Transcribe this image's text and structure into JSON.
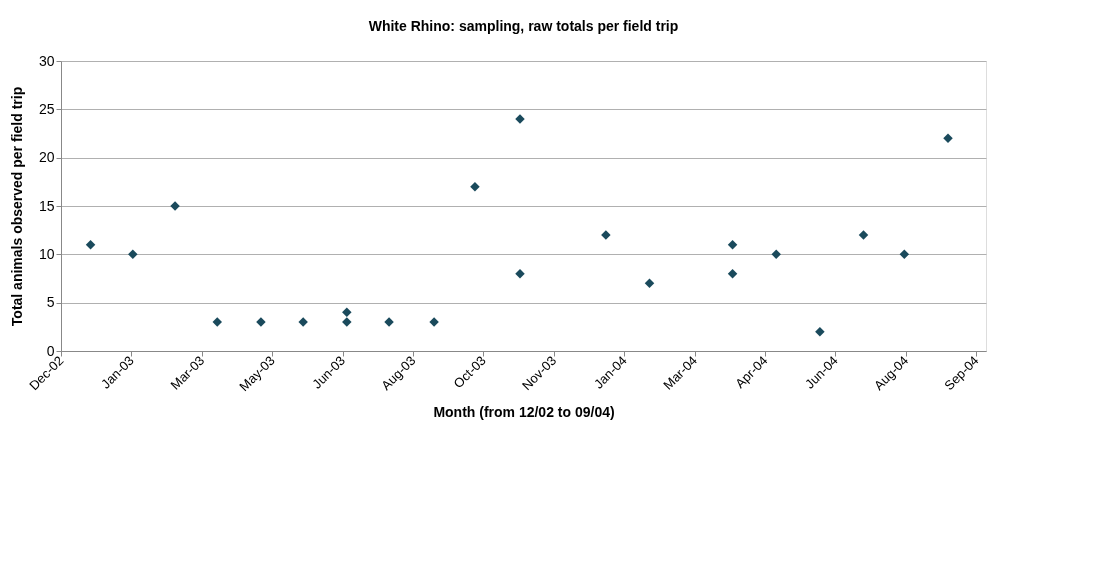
{
  "chart_data": {
    "type": "scatter",
    "title": "White Rhino: sampling, raw totals per field trip",
    "xlabel": "Month (from 12/02 to 09/04)",
    "ylabel": "Total animals observed per field trip",
    "x": [
      "2003-01-01",
      "2003-01-31",
      "2003-03-02",
      "2003-04-01",
      "2003-05-02",
      "2003-06-01",
      "2003-07-02",
      "2003-07-02",
      "2003-08-01",
      "2003-09-02",
      "2003-10-01",
      "2003-11-02",
      "2003-11-02",
      "2004-01-02",
      "2004-02-02",
      "2004-04-01",
      "2004-04-01",
      "2004-05-02",
      "2004-06-02",
      "2004-07-03",
      "2004-08-01",
      "2004-09-01"
    ],
    "series": [
      {
        "color": "#1a4a5c",
        "values": [
          11,
          10,
          15,
          3,
          3,
          3,
          4,
          3,
          3,
          3,
          17,
          24,
          8,
          12,
          7,
          11,
          8,
          10,
          2,
          12,
          10,
          22
        ]
      }
    ],
    "xlim": [
      "2002-12-11",
      "2004-09-28"
    ],
    "xticks": [
      {
        "value": "2002-12-11",
        "label": "Dec-02"
      },
      {
        "value": "2003-01-30",
        "label": "Jan-03"
      },
      {
        "value": "2003-03-21",
        "label": "Mar-03"
      },
      {
        "value": "2003-05-10",
        "label": "May-03"
      },
      {
        "value": "2003-06-29",
        "label": "Jun-03"
      },
      {
        "value": "2003-08-18",
        "label": "Aug-03"
      },
      {
        "value": "2003-10-07",
        "label": "Oct-03"
      },
      {
        "value": "2003-11-26",
        "label": "Nov-03"
      },
      {
        "value": "2004-01-15",
        "label": "Jan-04"
      },
      {
        "value": "2004-03-05",
        "label": "Mar-04"
      },
      {
        "value": "2004-04-24",
        "label": "Apr-04"
      },
      {
        "value": "2004-06-13",
        "label": "Jun-04"
      },
      {
        "value": "2004-08-02",
        "label": "Aug-04"
      },
      {
        "value": "2004-09-21",
        "label": "Sep-04"
      }
    ],
    "ylim": [
      0,
      30
    ],
    "yticks": [
      0,
      5,
      10,
      15,
      20,
      25,
      30
    ],
    "grid": "y",
    "legend": false,
    "marker": "diamond"
  }
}
